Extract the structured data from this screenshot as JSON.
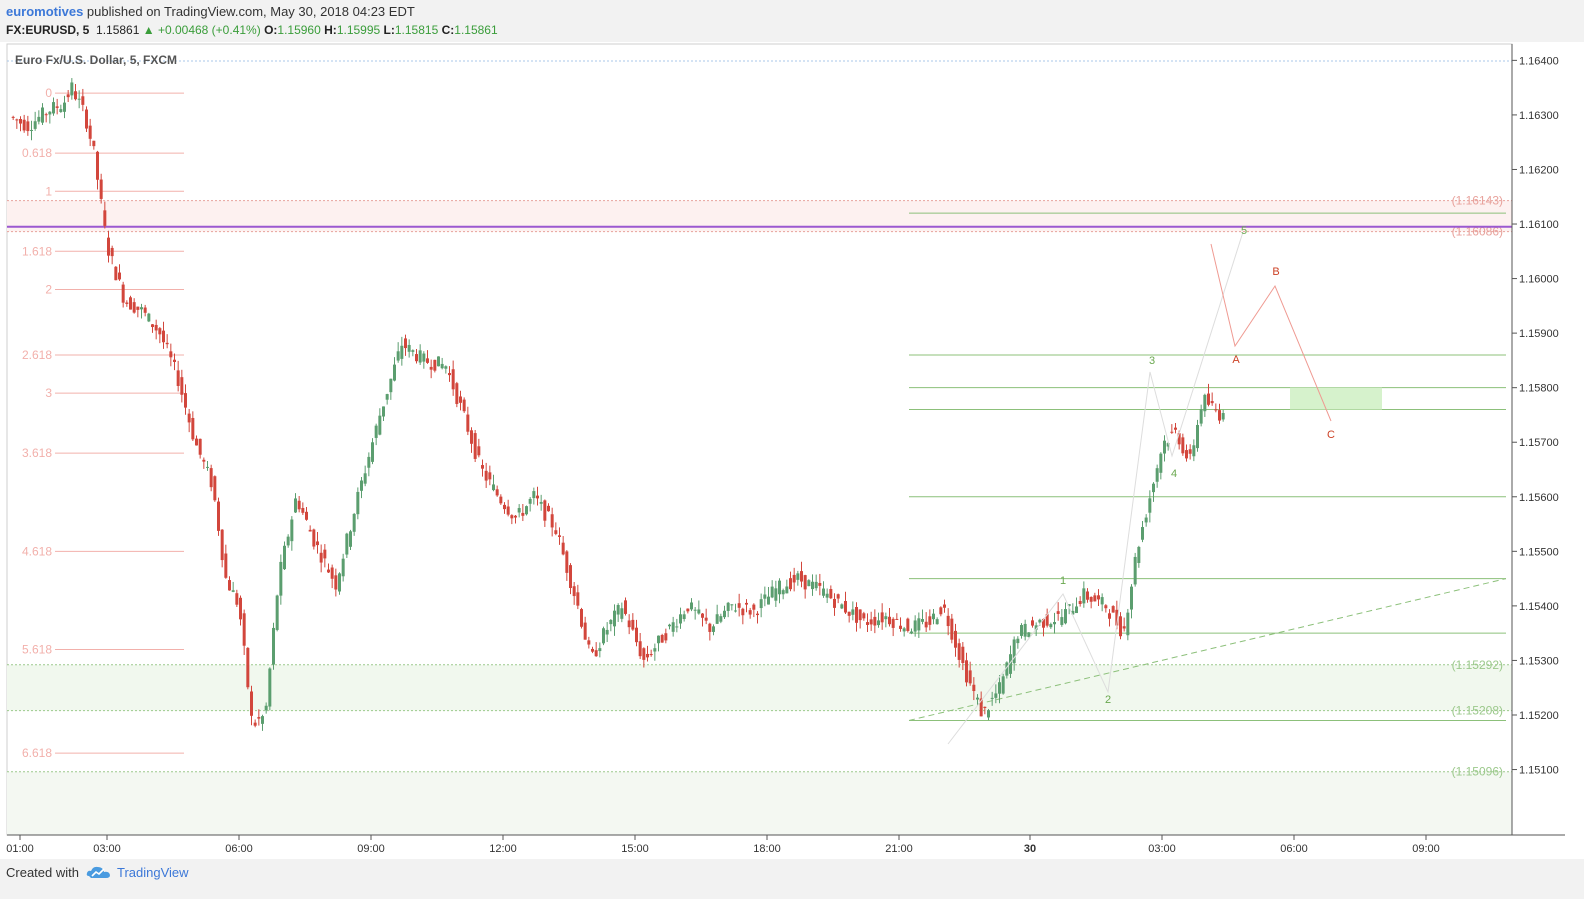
{
  "header": {
    "author": "euromotives",
    "published_text": " published on TradingView.com, May 30, 2018 04:23 EDT",
    "symbol": "FX:EURUSD, 5",
    "last_price": "1.15861",
    "change": "▲ +0.00468 (+0.41%)",
    "open_label": "O:",
    "open": "1.15960",
    "high_label": "H:",
    "high": "1.15995",
    "low_label": "L:",
    "low": "1.15815",
    "close_label": "C:",
    "close": "1.15861"
  },
  "footer": {
    "created_with": "Created with",
    "brand": "TradingView",
    "logo_icon": "tradingview-cloud-icon"
  },
  "colors": {
    "up": "#5b9e6f",
    "down": "#d2463c",
    "fib": "#f2b0ab",
    "green_level": "#8cc07a",
    "purple_line": "#9b59d0",
    "wave_green": "#6aa84f",
    "wave_red": "#cc4125"
  },
  "chart_data": {
    "type": "candlestick",
    "title": "Euro Fx/U.S. Dollar, 5, FXCM",
    "ylim": [
      1.1498,
      1.1643
    ],
    "y_ticks": [
      "1.16400",
      "1.16300",
      "1.16200",
      "1.16100",
      "1.16000",
      "1.15900",
      "1.15800",
      "1.15700",
      "1.15600",
      "1.15500",
      "1.15400",
      "1.15300",
      "1.15200",
      "1.15100"
    ],
    "x_ticks": [
      "01:00",
      "03:00",
      "06:00",
      "09:00",
      "12:00",
      "15:00",
      "18:00",
      "21:00",
      "30",
      "03:00",
      "06:00",
      "09:00"
    ],
    "fib_labels": [
      "0",
      "0.618",
      "1",
      "1.618",
      "2",
      "2.618",
      "3",
      "3.618",
      "4.618",
      "5.618",
      "6.618"
    ],
    "fib_levels": [
      1.1634,
      1.1623,
      1.1616,
      1.1605,
      1.1598,
      1.1586,
      1.1579,
      1.1568,
      1.155,
      1.1532,
      1.1513
    ],
    "horizontal_levels": [
      {
        "label": "(1.16143)",
        "value": 1.16143
      },
      {
        "label": "(1.16086)",
        "value": 1.16086
      },
      {
        "label": "(1.15292)",
        "value": 1.15292
      },
      {
        "label": "(1.15208)",
        "value": 1.15208
      },
      {
        "label": "(1.15096)",
        "value": 1.15096
      }
    ],
    "purple_line": 1.16095,
    "green_lines": [
      1.1612,
      1.1586,
      1.158,
      1.1576,
      1.156,
      1.1545,
      1.1535,
      1.1519
    ],
    "green_zone": {
      "from": 1.1576,
      "to": 1.158
    },
    "wave_labels_green": [
      "1",
      "2",
      "3",
      "4",
      "5"
    ],
    "wave_labels_red": [
      "A",
      "B",
      "C"
    ],
    "price_path": [
      [
        0,
        1.163
      ],
      [
        0.5,
        1.1628
      ],
      [
        1,
        1.1631
      ],
      [
        1.3,
        1.1632
      ],
      [
        1.5,
        1.1635
      ],
      [
        1.8,
        1.163
      ],
      [
        2.0,
        1.1623
      ],
      [
        2.3,
        1.1606
      ],
      [
        2.7,
        1.1596
      ],
      [
        3.1,
        1.1594
      ],
      [
        3.5,
        1.159
      ],
      [
        3.9,
        1.1582
      ],
      [
        4.3,
        1.157
      ],
      [
        4.7,
        1.1562
      ],
      [
        5.0,
        1.1545
      ],
      [
        5.3,
        1.154
      ],
      [
        5.6,
        1.1518
      ],
      [
        5.9,
        1.152
      ],
      [
        6.2,
        1.1545
      ],
      [
        6.6,
        1.156
      ],
      [
        7.0,
        1.1552
      ],
      [
        7.5,
        1.1544
      ],
      [
        8.0,
        1.156
      ],
      [
        8.5,
        1.1575
      ],
      [
        9.0,
        1.1588
      ],
      [
        9.5,
        1.1585
      ],
      [
        10.0,
        1.1584
      ],
      [
        10.4,
        1.1575
      ],
      [
        10.8,
        1.1565
      ],
      [
        11.2,
        1.156
      ],
      [
        11.6,
        1.1556
      ],
      [
        12.0,
        1.156
      ],
      [
        12.5,
        1.1554
      ],
      [
        13.0,
        1.154
      ],
      [
        13.3,
        1.153
      ],
      [
        13.6,
        1.1535
      ],
      [
        14.0,
        1.154
      ],
      [
        14.5,
        1.153
      ],
      [
        15.0,
        1.1535
      ],
      [
        15.5,
        1.154
      ],
      [
        16.0,
        1.1536
      ],
      [
        16.5,
        1.154
      ],
      [
        17.0,
        1.1539
      ],
      [
        17.5,
        1.1543
      ],
      [
        18.0,
        1.1545
      ],
      [
        18.5,
        1.1543
      ],
      [
        19.0,
        1.154
      ],
      [
        19.5,
        1.1537
      ],
      [
        20.0,
        1.1538
      ],
      [
        20.5,
        1.1536
      ],
      [
        21.0,
        1.1537
      ],
      [
        21.3,
        1.154
      ],
      [
        21.8,
        1.1528
      ],
      [
        22.2,
        1.152
      ],
      [
        22.6,
        1.1525
      ],
      [
        23.0,
        1.1535
      ],
      [
        23.5,
        1.1537
      ],
      [
        24.0,
        1.1538
      ],
      [
        24.5,
        1.1542
      ],
      [
        25.0,
        1.154
      ],
      [
        25.4,
        1.1535
      ],
      [
        25.7,
        1.155
      ],
      [
        26.0,
        1.156
      ],
      [
        26.3,
        1.157
      ],
      [
        26.6,
        1.1572
      ],
      [
        26.9,
        1.1566
      ],
      [
        27.2,
        1.1578
      ],
      [
        27.6,
        1.1575
      ],
      [
        28.0,
        1.1583
      ],
      [
        28.3,
        1.1595
      ],
      [
        28.6,
        1.1603
      ],
      [
        28.9,
        1.1596
      ],
      [
        29.1,
        1.1586
      ]
    ]
  }
}
